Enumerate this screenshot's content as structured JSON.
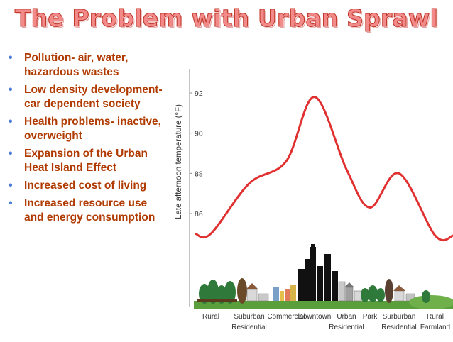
{
  "slide": {
    "title": "The Problem with Urban Sprawl",
    "bullets": [
      "Pollution- air, water, hazardous wastes",
      "Low density development- car dependent society",
      "Health problems- inactive, overweight",
      "Expansion of the Urban Heat Island Effect",
      "Increased cost of living",
      "Increased resource use and energy consumption"
    ]
  },
  "figure": {
    "ylabel": "Late afternoon temperature (°F)",
    "yticks": [
      "92",
      "90",
      "88",
      "86"
    ],
    "zones": [
      {
        "line1": "Rural",
        "line2": ""
      },
      {
        "line1": "Suburban",
        "line2": "Residential"
      },
      {
        "line1": "Commercial",
        "line2": ""
      },
      {
        "line1": "Downtown",
        "line2": ""
      },
      {
        "line1": "Urban",
        "line2": "Residential"
      },
      {
        "line1": "Park",
        "line2": ""
      },
      {
        "line1": "Surburban",
        "line2": "Residential"
      },
      {
        "line1": "Rural",
        "line2": "Farmland"
      }
    ],
    "colors": {
      "curve": "#e03030",
      "axis": "#888888",
      "text": "#333333",
      "trees": "#2f7a3a",
      "ground": "#5b9e3c"
    }
  },
  "chart_data": {
    "type": "line",
    "title": "",
    "xlabel": "",
    "ylabel": "Late afternoon temperature (°F)",
    "ylim": [
      84.2,
      93.2
    ],
    "x": [
      "Rural",
      "Suburban Residential",
      "Commercial",
      "Downtown",
      "Urban Residential",
      "Park",
      "Surburban Residential",
      "Rural Farmland"
    ],
    "series": [
      {
        "name": "",
        "values": [
          85.0,
          87.5,
          88.6,
          91.8,
          88.2,
          86.3,
          88.0,
          84.9
        ]
      }
    ]
  }
}
